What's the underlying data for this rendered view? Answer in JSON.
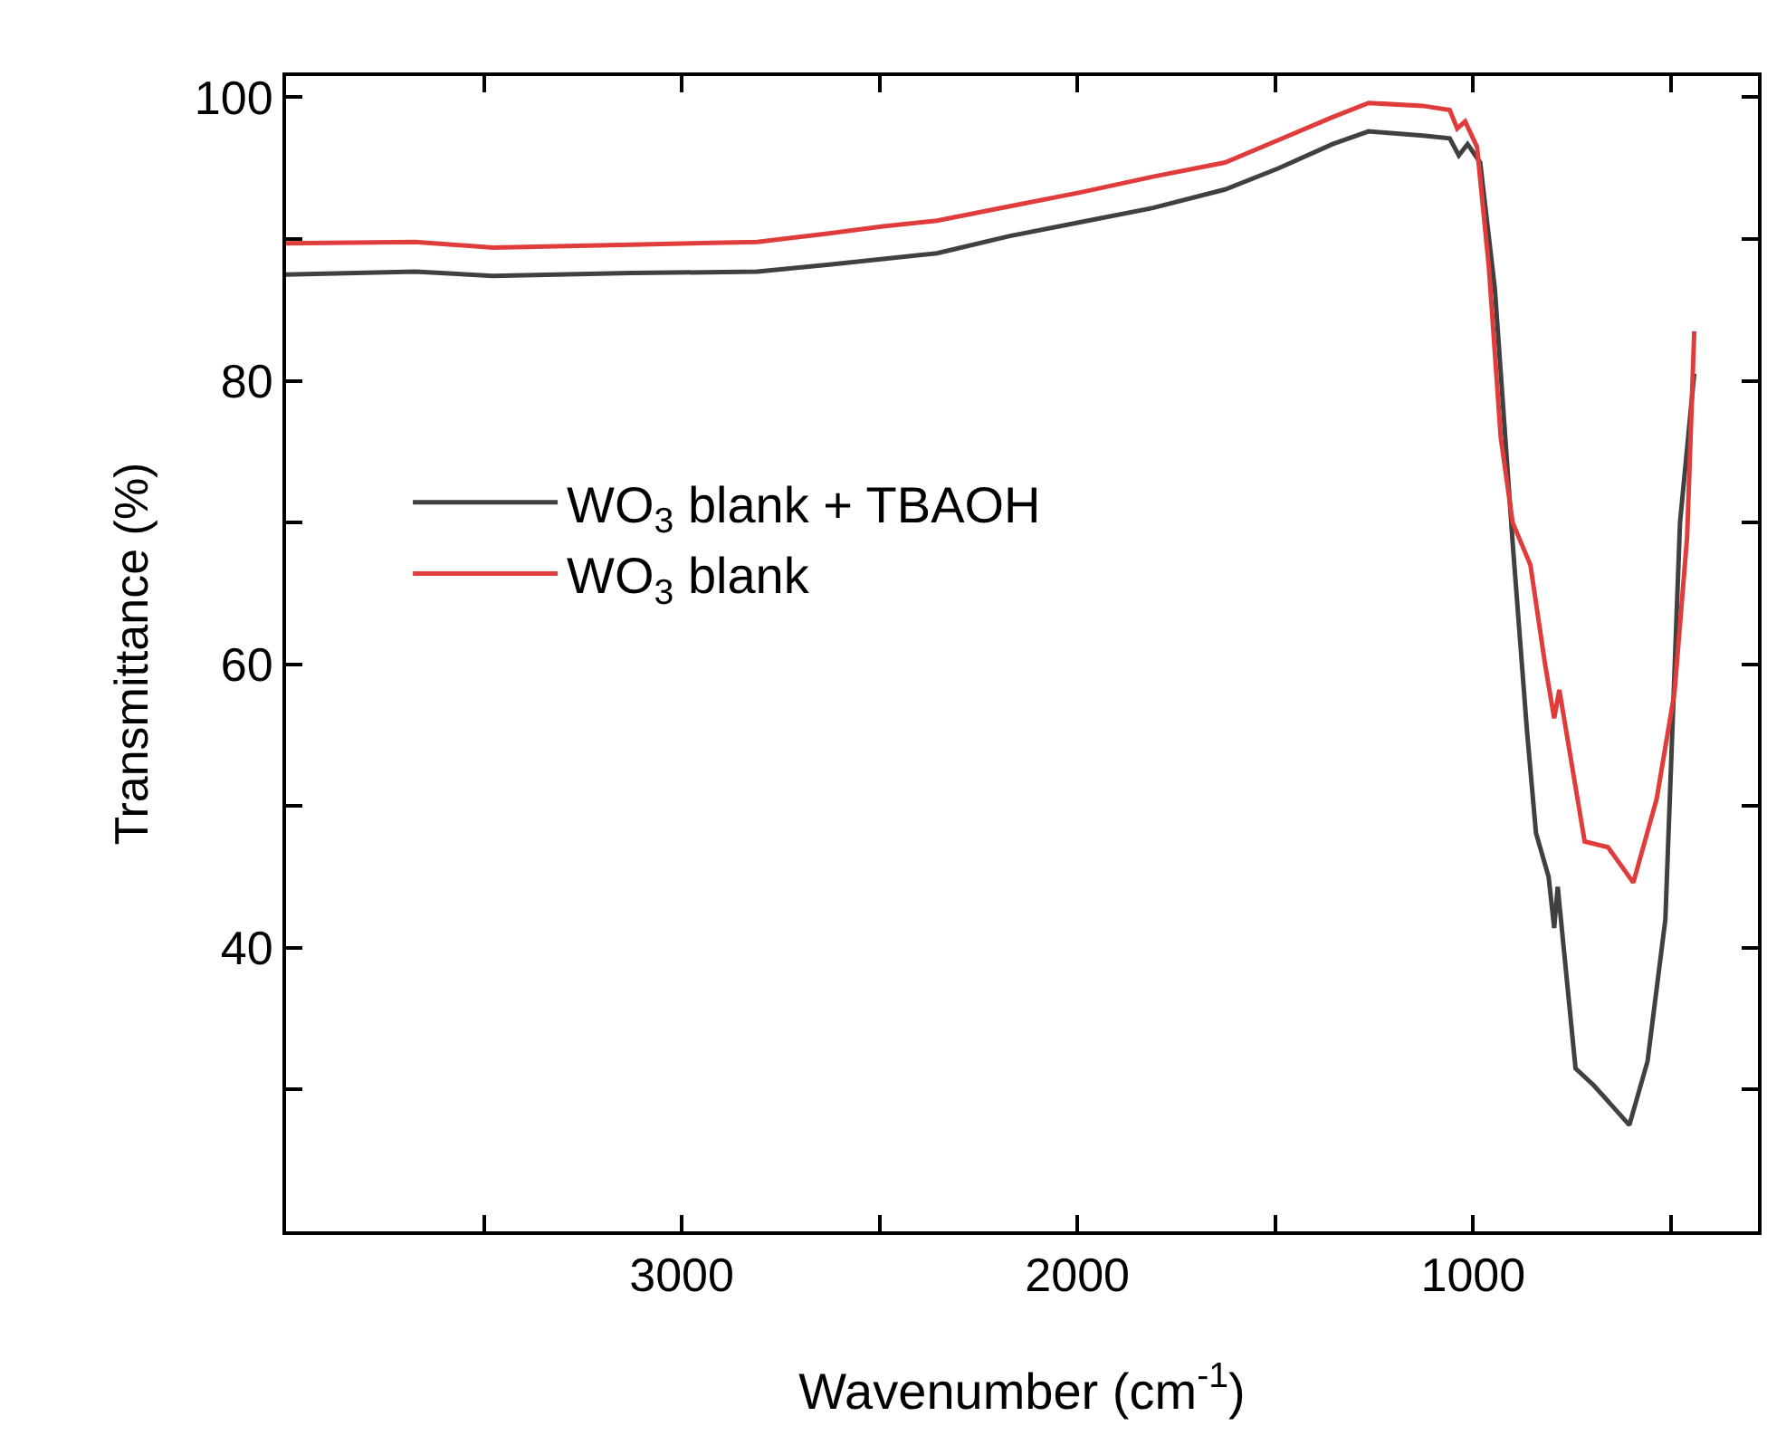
{
  "chart_data": {
    "type": "line",
    "xlabel": "Wavenumber (cm$^{-1}$)",
    "ylabel": "Transmittance (%)",
    "xlim": [
      4000,
      280
    ],
    "xticks": [
      {
        "value": 3500,
        "label": null
      },
      3000,
      {
        "value": 2500,
        "label": null
      },
      2000,
      {
        "value": 1500,
        "label": null
      },
      1000,
      {
        "value": 500,
        "label": null
      }
    ],
    "ylim": [
      20,
      101.5
    ],
    "yticks": [
      {
        "value": 30,
        "label": null
      },
      40,
      {
        "value": 50,
        "label": null
      },
      60,
      {
        "value": 70,
        "label": null
      },
      80,
      {
        "value": 90,
        "label": null
      },
      100
    ],
    "legend": "left",
    "line_style": "solid",
    "marker": "none",
    "series": [
      {
        "name": "WO$_{3}$ blank + TBAOH",
        "color": "#404040",
        "x": [
          4000,
          3673,
          3477,
          3127,
          2809,
          2627,
          2491,
          2355,
          2309,
          2173,
          1991,
          1809,
          1627,
          1491,
          1355,
          1264,
          1127,
          1059,
          1036,
          1014,
          982,
          945,
          900,
          864,
          841,
          809,
          795,
          786,
          741,
          695,
          605,
          559,
          514,
          477,
          441
        ],
        "values": [
          87.5,
          87.7,
          87.4,
          87.6,
          87.7,
          88.2,
          88.6,
          89.0,
          89.3,
          90.2,
          91.2,
          92.2,
          93.5,
          95.0,
          96.7,
          97.6,
          97.3,
          97.1,
          95.9,
          96.7,
          95.4,
          86.5,
          68.6,
          55.4,
          48.1,
          45.0,
          41.4,
          44.3,
          31.5,
          30.3,
          27.5,
          32,
          42,
          70,
          80.5
        ]
      },
      {
        "name": "WO$_{3}$ blank",
        "color": "#e03c3c",
        "x": [
          4000,
          3673,
          3477,
          3127,
          2809,
          2627,
          2491,
          2355,
          2173,
          1991,
          1809,
          1627,
          1491,
          1355,
          1264,
          1127,
          1059,
          1040,
          1020,
          990,
          960,
          930,
          900,
          855,
          818,
          795,
          782,
          718,
          659,
          595,
          536,
          491,
          459,
          441
        ],
        "values": [
          89.7,
          89.8,
          89.4,
          89.6,
          89.8,
          90.4,
          90.9,
          91.3,
          92.3,
          93.3,
          94.4,
          95.4,
          97.0,
          98.6,
          99.6,
          99.4,
          99.1,
          97.8,
          98.3,
          96.5,
          88,
          76,
          70,
          67,
          60,
          56.2,
          58.2,
          47.5,
          47.1,
          44.6,
          50.5,
          58,
          69,
          83.5
        ]
      }
    ]
  }
}
